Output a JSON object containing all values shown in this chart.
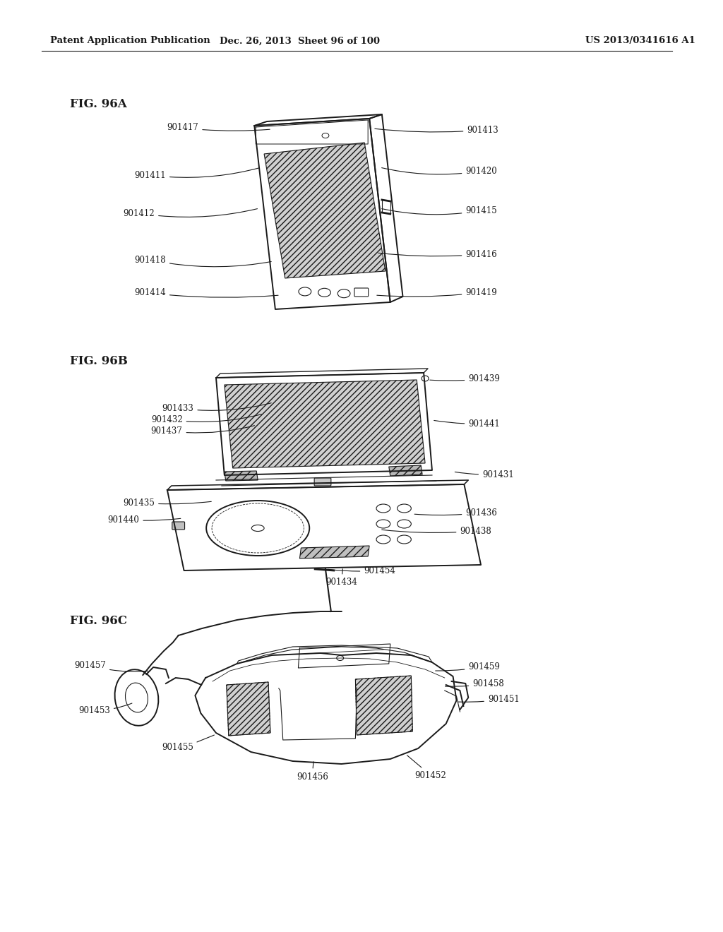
{
  "bg_color": "#ffffff",
  "header_left": "Patent Application Publication",
  "header_mid": "Dec. 26, 2013  Sheet 96 of 100",
  "header_right": "US 2013/0341616 A1",
  "line_color": "#1a1a1a",
  "hatch_color": "#555555"
}
